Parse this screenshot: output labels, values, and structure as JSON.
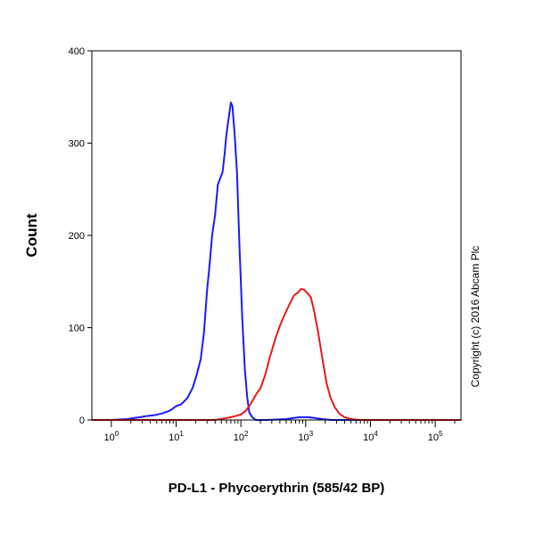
{
  "chart_data": {
    "type": "line",
    "title": "",
    "xlabel": "PD-L1 - Phycoerythrin (585/42 BP)",
    "ylabel": "Count",
    "x_scale": "log",
    "xlim": [
      0.5,
      250000
    ],
    "ylim": [
      0,
      400
    ],
    "y_ticks": [
      "0",
      "100",
      "200",
      "300",
      "400"
    ],
    "x_ticks": [
      {
        "base": "10",
        "exp": "0",
        "value": 1
      },
      {
        "base": "10",
        "exp": "1",
        "value": 10
      },
      {
        "base": "10",
        "exp": "2",
        "value": 100
      },
      {
        "base": "10",
        "exp": "3",
        "value": 1000
      },
      {
        "base": "10",
        "exp": "4",
        "value": 10000
      },
      {
        "base": "10",
        "exp": "5",
        "value": 100000
      }
    ],
    "grid": false,
    "legend": "none",
    "series": [
      {
        "color": "#1a1aff",
        "points": [
          [
            0.5,
            0
          ],
          [
            1,
            0
          ],
          [
            1.8,
            1
          ],
          [
            2.2,
            2
          ],
          [
            2.8,
            3
          ],
          [
            3.3,
            4
          ],
          [
            4.5,
            5
          ],
          [
            6,
            7
          ],
          [
            8,
            10
          ],
          [
            10,
            15
          ],
          [
            12,
            17
          ],
          [
            15,
            24
          ],
          [
            18,
            35
          ],
          [
            21,
            50
          ],
          [
            24,
            66
          ],
          [
            27,
            95
          ],
          [
            30,
            140
          ],
          [
            33,
            170
          ],
          [
            36,
            200
          ],
          [
            40,
            222
          ],
          [
            44,
            255
          ],
          [
            48,
            262
          ],
          [
            52,
            268
          ],
          [
            56,
            288
          ],
          [
            60,
            310
          ],
          [
            65,
            328
          ],
          [
            70,
            344
          ],
          [
            74,
            340
          ],
          [
            80,
            310
          ],
          [
            87,
            268
          ],
          [
            95,
            190
          ],
          [
            105,
            110
          ],
          [
            115,
            55
          ],
          [
            125,
            25
          ],
          [
            135,
            8
          ],
          [
            150,
            3
          ],
          [
            170,
            0
          ],
          [
            250,
            0
          ],
          [
            500,
            1
          ],
          [
            800,
            3
          ],
          [
            1100,
            3
          ],
          [
            1400,
            2
          ],
          [
            1800,
            1
          ],
          [
            2500,
            0
          ],
          [
            250000,
            0
          ]
        ]
      },
      {
        "color": "#e81818",
        "points": [
          [
            0.5,
            0
          ],
          [
            40,
            0
          ],
          [
            60,
            2
          ],
          [
            80,
            4
          ],
          [
            100,
            6
          ],
          [
            120,
            10
          ],
          [
            140,
            17
          ],
          [
            160,
            24
          ],
          [
            180,
            30
          ],
          [
            200,
            34
          ],
          [
            240,
            50
          ],
          [
            280,
            68
          ],
          [
            340,
            88
          ],
          [
            400,
            102
          ],
          [
            480,
            115
          ],
          [
            560,
            125
          ],
          [
            660,
            135
          ],
          [
            760,
            138
          ],
          [
            850,
            142
          ],
          [
            950,
            141
          ],
          [
            1050,
            138
          ],
          [
            1200,
            133
          ],
          [
            1350,
            118
          ],
          [
            1550,
            96
          ],
          [
            1800,
            68
          ],
          [
            2100,
            40
          ],
          [
            2400,
            25
          ],
          [
            2800,
            14
          ],
          [
            3300,
            7
          ],
          [
            4000,
            3
          ],
          [
            5000,
            1
          ],
          [
            7000,
            0
          ],
          [
            250000,
            0
          ]
        ]
      }
    ]
  },
  "copyright": "Copyright (c) 2016 Abcam Plc"
}
